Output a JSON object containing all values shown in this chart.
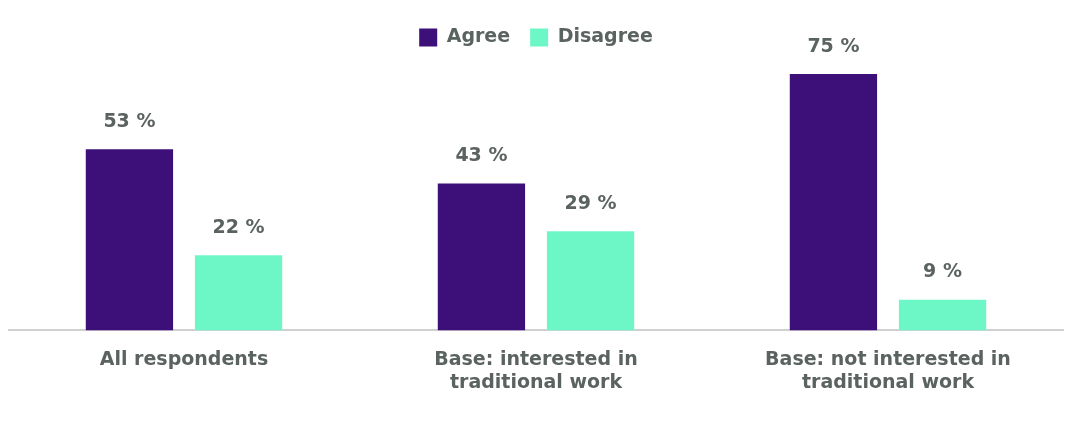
{
  "chart_data": {
    "type": "bar",
    "categories": [
      "All respondents",
      "Base: interested in traditional work",
      "Base: not interested in traditional work"
    ],
    "series": [
      {
        "name": "Agree",
        "color": "#3d0f78",
        "values": [
          53,
          43,
          75
        ],
        "value_labels": [
          "53 %",
          "43 %",
          "75 %"
        ]
      },
      {
        "name": "Disagree",
        "color": "#6ef7c6",
        "values": [
          22,
          29,
          9
        ],
        "value_labels": [
          "22 %",
          "29 %",
          "9 %"
        ]
      }
    ],
    "legend": "top",
    "grid": false,
    "tick_labels": "x"
  }
}
